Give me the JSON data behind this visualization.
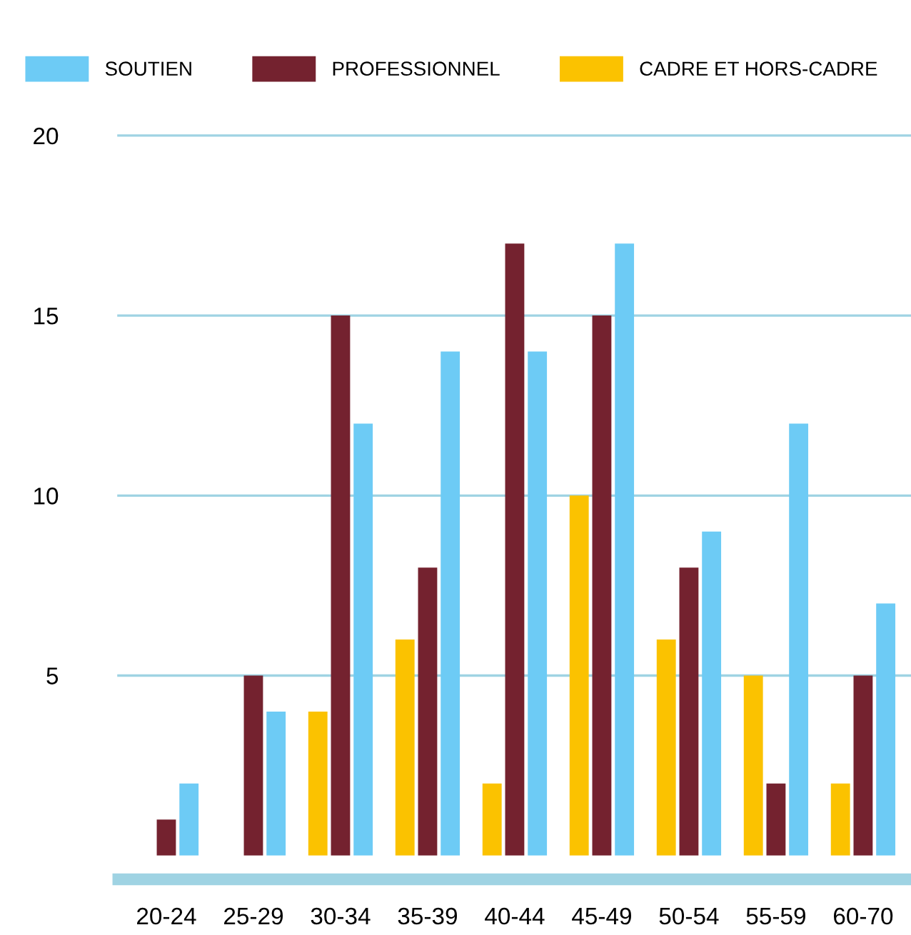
{
  "chart_data": {
    "type": "bar",
    "categories": [
      "20-24",
      "25-29",
      "30-34",
      "35-39",
      "40-44",
      "45-49",
      "50-54",
      "55-59",
      "60-70"
    ],
    "series": [
      {
        "name": "SOUTIEN",
        "color": "#6dcbf5",
        "values": [
          2,
          4,
          12,
          14,
          14,
          17,
          9,
          12,
          7
        ]
      },
      {
        "name": "PROFESSIONNEL",
        "color": "#74222f",
        "values": [
          1,
          5,
          15,
          8,
          17,
          15,
          8,
          2,
          5
        ]
      },
      {
        "name": "CADRE ET HORS-CADRE",
        "color": "#fbc200",
        "values": [
          0,
          0,
          4,
          6,
          2,
          10,
          6,
          5,
          2
        ]
      }
    ],
    "ylim": [
      0,
      20
    ],
    "yticks": [
      5,
      10,
      15,
      20
    ],
    "grid": "y",
    "legend": "top left"
  }
}
